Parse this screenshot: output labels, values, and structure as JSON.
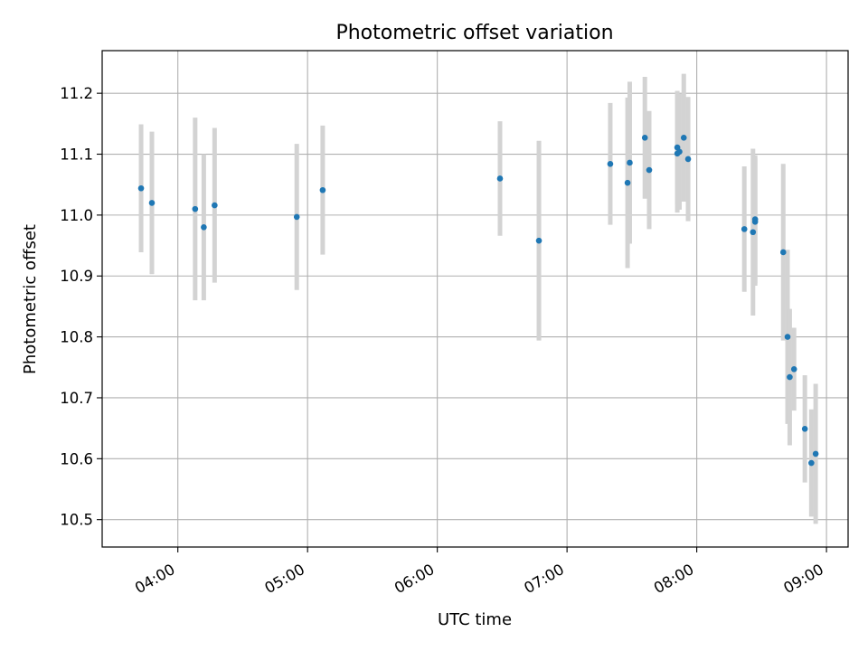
{
  "chart_data": {
    "type": "scatter",
    "title": "Photometric offset variation",
    "xlabel": "UTC time",
    "ylabel": "Photometric offset",
    "xlim": [
      "03:25",
      "09:10"
    ],
    "ylim": [
      10.455,
      11.27
    ],
    "x_ticks": [
      "04:00",
      "05:00",
      "06:00",
      "07:00",
      "08:00",
      "09:00"
    ],
    "y_ticks": [
      "10.5",
      "10.6",
      "10.7",
      "10.8",
      "10.9",
      "11.0",
      "11.1",
      "11.2"
    ],
    "grid": true,
    "legend": "none",
    "colors": {
      "point": "#1f77b4",
      "errorbar": "#d3d3d3",
      "grid": "#b0b0b0",
      "axes": "#000000"
    },
    "points": [
      {
        "x": "03:43",
        "y": 11.044,
        "err": 0.105
      },
      {
        "x": "03:48",
        "y": 11.02,
        "err": 0.117
      },
      {
        "x": "04:08",
        "y": 11.01,
        "err": 0.15
      },
      {
        "x": "04:12",
        "y": 10.98,
        "err": 0.12
      },
      {
        "x": "04:17",
        "y": 11.016,
        "err": 0.127
      },
      {
        "x": "04:55",
        "y": 10.997,
        "err": 0.12
      },
      {
        "x": "05:07",
        "y": 11.041,
        "err": 0.106
      },
      {
        "x": "06:29",
        "y": 11.06,
        "err": 0.094
      },
      {
        "x": "06:47",
        "y": 10.958,
        "err": 0.164
      },
      {
        "x": "07:20",
        "y": 11.084,
        "err": 0.1
      },
      {
        "x": "07:28",
        "y": 11.053,
        "err": 0.14
      },
      {
        "x": "07:29",
        "y": 11.086,
        "err": 0.133
      },
      {
        "x": "07:36",
        "y": 11.127,
        "err": 0.1
      },
      {
        "x": "07:38",
        "y": 11.074,
        "err": 0.097
      },
      {
        "x": "07:51",
        "y": 11.111,
        "err": 0.093
      },
      {
        "x": "07:51",
        "y": 11.101,
        "err": 0.097
      },
      {
        "x": "07:52",
        "y": 11.104,
        "err": 0.095
      },
      {
        "x": "07:54",
        "y": 11.127,
        "err": 0.105
      },
      {
        "x": "07:56",
        "y": 11.092,
        "err": 0.102
      },
      {
        "x": "08:22",
        "y": 10.977,
        "err": 0.103
      },
      {
        "x": "08:26",
        "y": 10.972,
        "err": 0.137
      },
      {
        "x": "08:27",
        "y": 10.993,
        "err": 0.105
      },
      {
        "x": "08:27",
        "y": 10.989,
        "err": 0.105
      },
      {
        "x": "08:40",
        "y": 10.939,
        "err": 0.145
      },
      {
        "x": "08:42",
        "y": 10.8,
        "err": 0.143
      },
      {
        "x": "08:43",
        "y": 10.734,
        "err": 0.112
      },
      {
        "x": "08:45",
        "y": 10.747,
        "err": 0.068
      },
      {
        "x": "08:50",
        "y": 10.649,
        "err": 0.088
      },
      {
        "x": "08:53",
        "y": 10.593,
        "err": 0.088
      },
      {
        "x": "08:55",
        "y": 10.608,
        "err": 0.115
      }
    ]
  }
}
